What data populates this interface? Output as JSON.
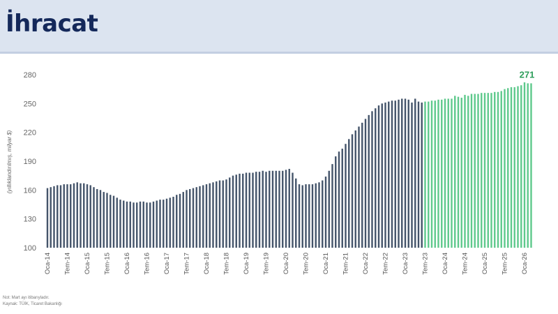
{
  "header": {
    "title": "İhracat"
  },
  "footnotes": {
    "note": "Not: Mart ayı itibarıyladır.",
    "source": "Kaynak: TÜİK, Ticaret Bakanlığı"
  },
  "chart_data": {
    "type": "bar",
    "title": "",
    "xlabel": "",
    "ylabel": "(yıllıklandırılmış, milyar $)",
    "ylim": [
      100,
      280
    ],
    "yticks": [
      100,
      130,
      160,
      190,
      220,
      250,
      280
    ],
    "grid": false,
    "start_month": "2014-01",
    "tick_labels": [
      "Oca-14",
      "Tem-14",
      "Oca-15",
      "Tem-15",
      "Oca-16",
      "Tem-16",
      "Oca-17",
      "Tem-17",
      "Oca-18",
      "Tem-18",
      "Oca-19",
      "Tem-19",
      "Oca-20",
      "Tem-20",
      "Oca-21",
      "Tem-21",
      "Oca-22",
      "Tem-22",
      "Oca-23",
      "Tem-23",
      "Oca-24",
      "Tem-24",
      "Oca-25",
      "Tem-25",
      "Oca-26"
    ],
    "series": [
      {
        "color": "#44546a",
        "period": "2014-01 – 2023-06",
        "values": [
          162,
          163,
          164,
          165,
          165,
          166,
          166,
          166,
          167,
          168,
          167,
          167,
          166,
          165,
          163,
          161,
          160,
          158,
          157,
          155,
          154,
          152,
          150,
          149,
          148,
          148,
          147,
          147,
          148,
          148,
          147,
          147,
          148,
          149,
          150,
          150,
          151,
          152,
          153,
          155,
          156,
          158,
          160,
          161,
          162,
          163,
          164,
          165,
          166,
          167,
          168,
          169,
          170,
          170,
          171,
          173,
          175,
          176,
          177,
          177,
          178,
          178,
          178,
          179,
          179,
          180,
          179,
          180,
          180,
          180,
          180,
          180,
          181,
          182,
          178,
          172,
          166,
          165,
          166,
          166,
          166,
          167,
          168,
          170,
          174,
          180,
          187,
          195,
          200,
          203,
          208,
          213,
          218,
          222,
          226,
          230,
          234,
          238,
          242,
          245,
          248,
          250,
          251,
          252,
          253,
          253,
          254,
          255,
          255,
          254,
          251,
          255,
          252,
          251
        ]
      },
      {
        "color": "#5ec98c",
        "period": "2023-07 – 2026-03",
        "values": [
          252,
          252,
          253,
          253,
          254,
          254,
          255,
          255,
          255,
          258,
          257,
          256,
          259,
          258,
          260,
          260,
          260,
          261,
          261,
          261,
          261,
          262,
          262,
          263,
          265,
          266,
          267,
          267,
          268,
          269,
          272,
          271,
          271
        ]
      }
    ],
    "annotations": [
      {
        "text": "271",
        "color": "#2e9e5b",
        "target": "last bar"
      }
    ]
  }
}
